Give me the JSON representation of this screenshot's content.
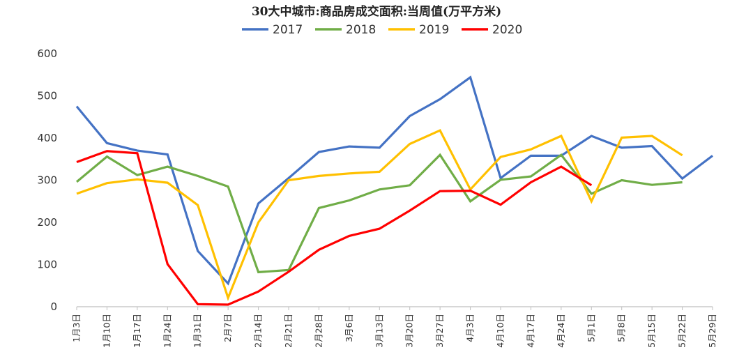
{
  "chart_data": {
    "type": "line",
    "title": "30大中城市:商品房成交面积:当周值(万平方米)",
    "xlabel": "",
    "ylabel": "",
    "ylim": [
      0,
      600
    ],
    "yticks": [
      0,
      100,
      200,
      300,
      400,
      500,
      600
    ],
    "grid": false,
    "legend_position": "top",
    "categories": [
      "1月3日",
      "1月10日",
      "1月17日",
      "1月24日",
      "1月31日",
      "2月7日",
      "2月14日",
      "2月21日",
      "2月28日",
      "3月6日",
      "3月13日",
      "3月20日",
      "3月27日",
      "4月3日",
      "4月10日",
      "4月17日",
      "4月24日",
      "5月1日",
      "5月8日",
      "5月15日",
      "5月22日",
      "5月29日"
    ],
    "series": [
      {
        "name": "2017",
        "color": "#4472C4",
        "values": [
          475,
          388,
          370,
          361,
          132,
          55,
          245,
          305,
          367,
          380,
          377,
          452,
          492,
          544,
          305,
          358,
          358,
          405,
          377,
          381,
          304,
          358
        ]
      },
      {
        "name": "2018",
        "color": "#70AD47",
        "values": [
          296,
          356,
          312,
          332,
          310,
          285,
          82,
          87,
          234,
          252,
          278,
          288,
          360,
          250,
          301,
          309,
          360,
          268,
          300,
          289,
          295,
          null
        ]
      },
      {
        "name": "2019",
        "color": "#FFC000",
        "values": [
          268,
          293,
          302,
          294,
          241,
          21,
          200,
          300,
          310,
          316,
          320,
          386,
          418,
          278,
          355,
          373,
          405,
          250,
          401,
          405,
          359,
          null
        ]
      },
      {
        "name": "2020",
        "color": "#FF0000",
        "values": [
          343,
          369,
          364,
          101,
          6,
          5,
          36,
          83,
          135,
          168,
          185,
          228,
          274,
          275,
          242,
          295,
          332,
          288,
          null,
          null,
          null,
          null
        ]
      }
    ]
  }
}
